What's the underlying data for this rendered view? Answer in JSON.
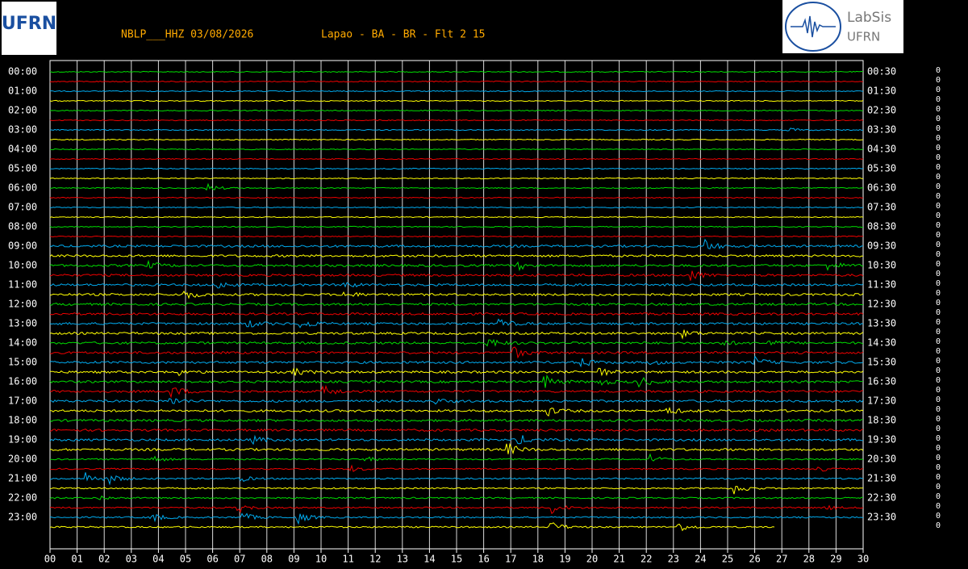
{
  "header": {
    "station": "NBLP___HHZ 03/08/2026",
    "location": "Lapao - BA - BR - Flt 2 15",
    "logo_left": "UFRN",
    "logo_right": {
      "title": "LabSis",
      "subtitle": "UFRN"
    }
  },
  "left_labels": [
    "00:00",
    "01:00",
    "02:00",
    "03:00",
    "04:00",
    "05:00",
    "06:00",
    "07:00",
    "08:00",
    "09:00",
    "10:00",
    "11:00",
    "12:00",
    "13:00",
    "14:00",
    "15:00",
    "16:00",
    "17:00",
    "18:00",
    "19:00",
    "20:00",
    "21:00",
    "22:00",
    "23:00"
  ],
  "right_labels": [
    "00:30",
    "01:30",
    "02:30",
    "03:30",
    "04:30",
    "05:30",
    "06:30",
    "07:30",
    "08:30",
    "09:30",
    "10:30",
    "11:30",
    "12:30",
    "13:30",
    "14:30",
    "15:30",
    "16:30",
    "17:30",
    "18:30",
    "19:30",
    "20:30",
    "21:30",
    "22:30",
    "23:30"
  ],
  "x_labels": [
    "00",
    "01",
    "02",
    "03",
    "04",
    "05",
    "06",
    "07",
    "08",
    "09",
    "10",
    "11",
    "12",
    "13",
    "14",
    "15",
    "16",
    "17",
    "18",
    "19",
    "20",
    "21",
    "22",
    "23",
    "24",
    "25",
    "26",
    "27",
    "28",
    "29",
    "30"
  ],
  "trace_colors": [
    "#00dd00",
    "#ee0000",
    "#00aaee",
    "#ffff00"
  ],
  "scale_markers": [
    "0",
    "0",
    "0",
    "0",
    "0",
    "0",
    "0",
    "0",
    "0",
    "0",
    "0",
    "0",
    "0",
    "0",
    "0",
    "0",
    "0",
    "0",
    "0",
    "0",
    "0",
    "0",
    "0",
    "0",
    "0",
    "0",
    "0",
    "0",
    "0",
    "0",
    "0",
    "0",
    "0",
    "0",
    "0",
    "0",
    "0",
    "0",
    "0",
    "0",
    "0",
    "0",
    "0",
    "0",
    "0",
    "0",
    "0",
    "0"
  ]
}
